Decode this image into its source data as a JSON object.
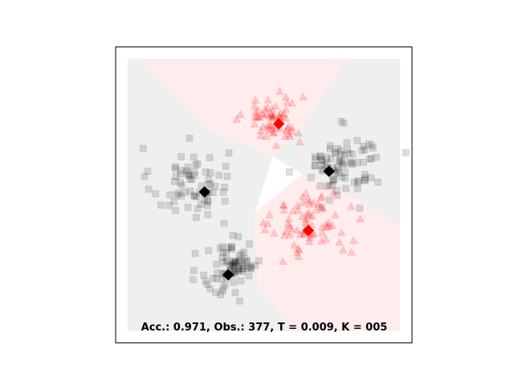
{
  "chart_data": {
    "type": "scatter",
    "title": "",
    "xlabel": "",
    "ylabel": "",
    "xlim": [
      0,
      1
    ],
    "ylim": [
      0,
      1
    ],
    "grid": false,
    "legend": "none",
    "annotation": "Acc.: 0.971, Obs.: 377, T = 0.009, K = 005",
    "colors": {
      "class_black": "#000000",
      "class_red": "#ff0000",
      "region_black": "#e9e9e9",
      "region_red": "#ffe6e6"
    },
    "regions": [
      {
        "class": "red",
        "polygon": [
          [
            0.08,
            0.96
          ],
          [
            0.31,
            0.72
          ],
          [
            0.53,
            0.63
          ],
          [
            0.63,
            0.73
          ],
          [
            0.78,
            0.96
          ]
        ]
      },
      {
        "class": "red",
        "polygon": [
          [
            0.47,
            0.44
          ],
          [
            0.63,
            0.57
          ],
          [
            0.74,
            0.53
          ],
          [
            0.96,
            0.39
          ],
          [
            0.96,
            0.04
          ],
          [
            0.61,
            0.04
          ],
          [
            0.48,
            0.19
          ],
          [
            0.47,
            0.34
          ]
        ]
      },
      {
        "class": "black",
        "polygon": [
          [
            0.04,
            0.96
          ],
          [
            0.08,
            0.96
          ],
          [
            0.31,
            0.72
          ],
          [
            0.53,
            0.63
          ],
          [
            0.47,
            0.44
          ],
          [
            0.47,
            0.34
          ],
          [
            0.48,
            0.19
          ],
          [
            0.61,
            0.04
          ],
          [
            0.04,
            0.04
          ]
        ]
      },
      {
        "class": "black",
        "polygon": [
          [
            0.63,
            0.73
          ],
          [
            0.78,
            0.96
          ],
          [
            0.96,
            0.96
          ],
          [
            0.96,
            0.39
          ],
          [
            0.74,
            0.53
          ],
          [
            0.63,
            0.57
          ],
          [
            0.53,
            0.63
          ]
        ]
      }
    ],
    "centroids": [
      {
        "class": "black",
        "x": 0.3,
        "y": 0.51
      },
      {
        "class": "red",
        "x": 0.55,
        "y": 0.74
      },
      {
        "class": "black",
        "x": 0.72,
        "y": 0.58
      },
      {
        "class": "red",
        "x": 0.65,
        "y": 0.38
      },
      {
        "class": "black",
        "x": 0.38,
        "y": 0.23
      }
    ],
    "clusters": [
      {
        "class": "black",
        "marker": "square",
        "cx": 0.25,
        "cy": 0.54,
        "sx": 0.065,
        "sy": 0.06,
        "n": 70
      },
      {
        "class": "red",
        "marker": "triangle",
        "cx": 0.53,
        "cy": 0.76,
        "sx": 0.05,
        "sy": 0.045,
        "n": 65
      },
      {
        "class": "black",
        "marker": "square",
        "cx": 0.77,
        "cy": 0.6,
        "sx": 0.065,
        "sy": 0.055,
        "n": 85
      },
      {
        "class": "red",
        "marker": "triangle",
        "cx": 0.66,
        "cy": 0.4,
        "sx": 0.065,
        "sy": 0.055,
        "n": 75
      },
      {
        "class": "black",
        "marker": "square",
        "cx": 0.39,
        "cy": 0.26,
        "sx": 0.05,
        "sy": 0.055,
        "n": 82
      }
    ]
  }
}
